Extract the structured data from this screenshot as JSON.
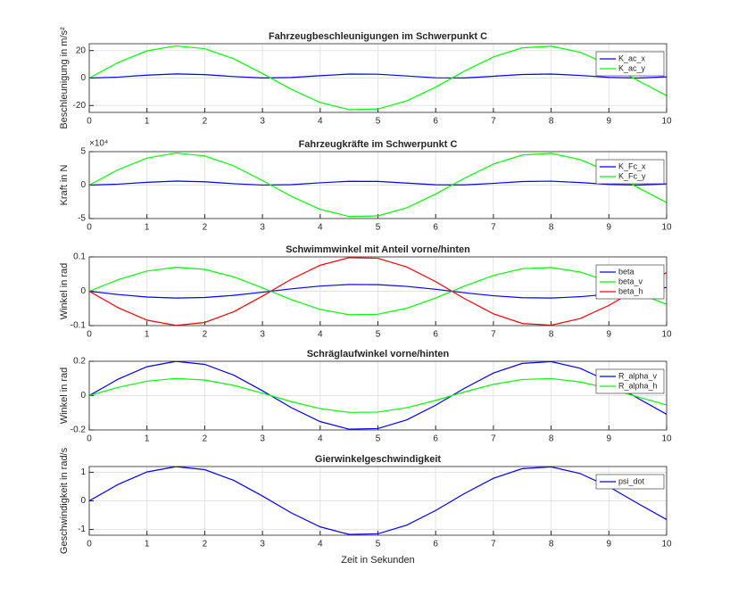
{
  "chart_data": [
    {
      "type": "line",
      "title": "Fahrzeugbeschleunigungen im Schwerpunkt C",
      "y_label": "Beschleunigung in m/s²",
      "x": [
        0,
        0.5,
        1,
        1.5,
        2,
        2.5,
        3,
        3.5,
        4,
        4.5,
        5,
        5.5,
        6,
        6.5,
        7,
        7.5,
        8,
        8.5,
        9,
        9.5,
        10
      ],
      "series": [
        {
          "name": "K_ac_x",
          "color": "#0000ff",
          "values": [
            0,
            0.7,
            2.1,
            3,
            2.5,
            1.1,
            0.1,
            0.4,
            1.7,
            2.9,
            2.8,
            1.5,
            0.2,
            0.1,
            1.3,
            2.6,
            2.9,
            1.9,
            0.5,
            0,
            0.9
          ]
        },
        {
          "name": "K_ac_y",
          "color": "#00ff00",
          "values": [
            0,
            11.3,
            19.8,
            23.4,
            21.4,
            14.1,
            3.3,
            -8.2,
            -17.8,
            -23,
            -22.5,
            -16.6,
            -6.6,
            5.1,
            15.4,
            22,
            23.2,
            18.8,
            9.7,
            -1.8,
            -12.8
          ]
        }
      ],
      "xlim": [
        0,
        10
      ],
      "xticks": [
        0,
        1,
        2,
        3,
        4,
        5,
        6,
        7,
        8,
        9,
        10
      ],
      "ylim": [
        -25,
        25
      ],
      "yticks": [
        -20,
        0,
        20
      ],
      "grid": true,
      "legend": "upper right"
    },
    {
      "type": "line",
      "title": "Fahrzeugkräfte im Schwerpunkt C",
      "y_label": "Kraft in N",
      "y_exponent": "×10⁴",
      "x": [
        0,
        0.5,
        1,
        1.5,
        2,
        2.5,
        3,
        3.5,
        4,
        4.5,
        5,
        5.5,
        6,
        6.5,
        7,
        7.5,
        8,
        8.5,
        9,
        9.5,
        10
      ],
      "series": [
        {
          "name": "K_Fc_x",
          "color": "#0000ff",
          "values": [
            0,
            1400,
            4200,
            6000,
            5000,
            2100,
            100,
            700,
            3400,
            5700,
            5500,
            3000,
            500,
            300,
            2600,
            5300,
            5900,
            3800,
            1000,
            0,
            1800
          ]
        },
        {
          "name": "K_Fc_y",
          "color": "#00ff00",
          "values": [
            0,
            23000,
            40400,
            47900,
            43600,
            28700,
            6800,
            -16800,
            -36300,
            -46900,
            -46000,
            -33900,
            -13400,
            10300,
            31500,
            45000,
            47500,
            38300,
            19800,
            -3600,
            -26100
          ]
        }
      ],
      "xlim": [
        0,
        10
      ],
      "xticks": [
        0,
        1,
        2,
        3,
        4,
        5,
        6,
        7,
        8,
        9,
        10
      ],
      "ylim": [
        -50000,
        50000
      ],
      "yticks": [
        {
          "value": -50000,
          "label": "-5"
        },
        0,
        {
          "value": 50000,
          "label": "5"
        }
      ],
      "grid": true,
      "legend": "upper right"
    },
    {
      "type": "line",
      "title": "Schwimmwinkel mit Anteil vorne/hinten",
      "y_label": "Winkel in rad",
      "x": [
        0,
        0.5,
        1,
        1.5,
        2,
        2.5,
        3,
        3.5,
        4,
        4.5,
        5,
        5.5,
        6,
        6.5,
        7,
        7.5,
        8,
        8.5,
        9,
        9.5,
        10
      ],
      "series": [
        {
          "name": "beta",
          "color": "#0000ff",
          "values": [
            0,
            -0.0096,
            -0.0168,
            -0.0199,
            -0.0182,
            -0.012,
            -0.0028,
            0.007,
            0.0151,
            0.0196,
            0.0192,
            0.0141,
            0.0056,
            -0.0043,
            -0.0131,
            -0.0188,
            -0.0198,
            -0.016,
            -0.0082,
            0.0015,
            0.0109
          ]
        },
        {
          "name": "beta_v",
          "color": "#00ff00",
          "values": [
            0,
            0.0335,
            0.0589,
            0.0698,
            0.0636,
            0.0419,
            0.0099,
            -0.0246,
            -0.053,
            -0.0685,
            -0.0671,
            -0.0494,
            -0.0195,
            0.0151,
            0.046,
            0.0657,
            0.0692,
            0.0559,
            0.0288,
            -0.0053,
            -0.0381
          ]
        },
        {
          "name": "beta_h",
          "color": "#ff0000",
          "values": [
            0,
            -0.0479,
            -0.0841,
            -0.0997,
            -0.0909,
            -0.0598,
            -0.0141,
            0.0351,
            0.0757,
            0.0978,
            0.0959,
            0.0706,
            0.0279,
            -0.0215,
            -0.0657,
            -0.0938,
            -0.0989,
            -0.0798,
            -0.0412,
            0.0075,
            0.0544
          ]
        }
      ],
      "xlim": [
        0,
        10
      ],
      "xticks": [
        0,
        1,
        2,
        3,
        4,
        5,
        6,
        7,
        8,
        9,
        10
      ],
      "ylim": [
        -0.1,
        0.1
      ],
      "yticks": [
        -0.1,
        0,
        0.1
      ],
      "grid": true,
      "legend": "upper right"
    },
    {
      "type": "line",
      "title": "Schräglaufwinkel vorne/hinten",
      "y_label": "Winkel in rad",
      "x": [
        0,
        0.5,
        1,
        1.5,
        2,
        2.5,
        3,
        3.5,
        4,
        4.5,
        5,
        5.5,
        6,
        6.5,
        7,
        7.5,
        8,
        8.5,
        9,
        9.5,
        10
      ],
      "series": [
        {
          "name": "R_alpha_v",
          "color": "#0000ff",
          "values": [
            0,
            0.0958,
            0.1683,
            0.1995,
            0.1819,
            0.1197,
            0.0282,
            -0.0702,
            -0.1514,
            -0.1956,
            -0.1918,
            -0.1411,
            -0.0559,
            0.043,
            0.1314,
            0.1876,
            0.1979,
            0.1596,
            0.0824,
            -0.015,
            -0.1088
          ]
        },
        {
          "name": "R_alpha_h",
          "color": "#00ff00",
          "values": [
            0,
            0.0479,
            0.0841,
            0.0997,
            0.0909,
            0.0598,
            0.0141,
            -0.0351,
            -0.0757,
            -0.0978,
            -0.0959,
            -0.0706,
            -0.0279,
            0.0215,
            0.0657,
            0.0938,
            0.0989,
            0.0798,
            0.0412,
            -0.0075,
            -0.0544
          ]
        }
      ],
      "xlim": [
        0,
        10
      ],
      "xticks": [
        0,
        1,
        2,
        3,
        4,
        5,
        6,
        7,
        8,
        9,
        10
      ],
      "ylim": [
        -0.2,
        0.2
      ],
      "yticks": [
        -0.2,
        0,
        0.2
      ],
      "grid": true,
      "legend": "upper right"
    },
    {
      "type": "line",
      "title": "Gierwinkelgeschwindigkeit",
      "y_label": "Geschwindigkeit in rad/s",
      "x_label": "Zeit in Sekunden",
      "x": [
        0,
        0.5,
        1,
        1.5,
        2,
        2.5,
        3,
        3.5,
        4,
        4.5,
        5,
        5.5,
        6,
        6.5,
        7,
        7.5,
        8,
        8.5,
        9,
        9.5,
        10
      ],
      "series": [
        {
          "name": "psi_dot",
          "color": "#0000ff",
          "values": [
            0,
            0.575,
            1.01,
            1.197,
            1.091,
            0.718,
            0.169,
            -0.421,
            -0.908,
            -1.173,
            -1.151,
            -0.847,
            -0.335,
            0.258,
            0.788,
            1.126,
            1.187,
            0.958,
            0.494,
            -0.09,
            -0.653
          ]
        }
      ],
      "xlim": [
        0,
        10
      ],
      "xticks": [
        0,
        1,
        2,
        3,
        4,
        5,
        6,
        7,
        8,
        9,
        10
      ],
      "ylim": [
        -1.2,
        1.2
      ],
      "yticks": [
        -1,
        0,
        1
      ],
      "grid": true,
      "legend": "upper right"
    }
  ]
}
